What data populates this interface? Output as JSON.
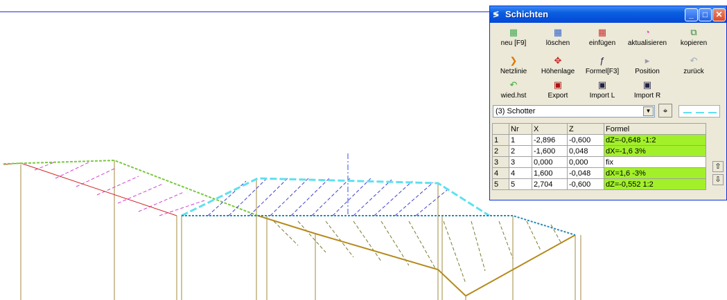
{
  "window": {
    "title": "Schichten",
    "title_icon": "layers-icon"
  },
  "toolbar": {
    "row1": [
      {
        "label": "neu [F9]",
        "icon": "new-layer-icon"
      },
      {
        "label": "löschen",
        "icon": "delete-layer-icon"
      },
      {
        "label": "einfügen",
        "icon": "insert-layer-icon"
      },
      {
        "label": "aktualisieren",
        "icon": "refresh-icon"
      },
      {
        "label": "kopieren",
        "icon": "copy-icon"
      }
    ],
    "row2": [
      {
        "label": "Netzlinie",
        "icon": "netline-icon"
      },
      {
        "label": "Höhenlage",
        "icon": "height-position-icon"
      },
      {
        "label": "Formel[F3]",
        "icon": "formula-icon"
      },
      {
        "label": "Position",
        "icon": "position-icon"
      },
      {
        "label": "zurück",
        "icon": "back-icon"
      }
    ],
    "row3": [
      {
        "label": "wied.hst",
        "icon": "restore-icon"
      },
      {
        "label": "Export",
        "icon": "export-icon"
      },
      {
        "label": "Import L",
        "icon": "import-left-icon"
      },
      {
        "label": "Import R",
        "icon": "import-right-icon"
      }
    ]
  },
  "layer_select": {
    "value": "(3) Schotter"
  },
  "table": {
    "headers": [
      "Nr",
      "X",
      "Z",
      "Formel"
    ],
    "rows": [
      {
        "row": "1",
        "nr": "1",
        "x": "-2,896",
        "z": "-0,600",
        "formel": "dZ=-0,648 -1:2",
        "highlight": true
      },
      {
        "row": "2",
        "nr": "2",
        "x": "-1,600",
        "z": "0,048",
        "formel": "dX=-1,6 3%",
        "highlight": true
      },
      {
        "row": "3",
        "nr": "3",
        "x": "0,000",
        "z": "0,000",
        "formel": "fix",
        "highlight": false
      },
      {
        "row": "4",
        "nr": "4",
        "x": "1,600",
        "z": "-0,048",
        "formel": "dX=1,6 -3%",
        "highlight": true
      },
      {
        "row": "5",
        "nr": "5",
        "x": "2,704",
        "z": "-0,600",
        "formel": "dZ=-0,552 1:2",
        "highlight": true
      }
    ]
  },
  "colors": {
    "highlight": "#a2f02a",
    "layer_outline": "#5ee0f0",
    "ground_line": "#b58a1c",
    "terrain_line": "#d02020"
  }
}
